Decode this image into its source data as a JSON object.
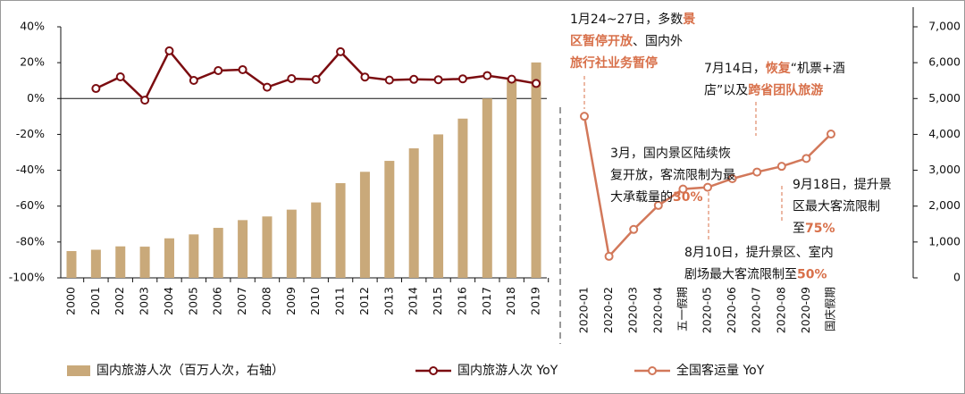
{
  "chart_data": [
    {
      "type": "bar",
      "categories": [
        "2000",
        "2001",
        "2002",
        "2003",
        "2004",
        "2005",
        "2006",
        "2007",
        "2008",
        "2009",
        "2010",
        "2011",
        "2012",
        "2013",
        "2014",
        "2015",
        "2016",
        "2017",
        "2018",
        "2019"
      ],
      "series": [
        {
          "name": "国内旅游人次（百万人次，右轴）",
          "type": "bar",
          "axis": "y2",
          "color": "#c9a97a",
          "values": [
            747,
            784,
            878,
            870,
            1102,
            1212,
            1394,
            1610,
            1712,
            1902,
            2103,
            2641,
            2957,
            3262,
            3611,
            4000,
            4440,
            5001,
            5539,
            6006
          ]
        },
        {
          "name": "国内旅游人次 YoY",
          "type": "line",
          "color": "#7b0c10",
          "values": [
            null,
            5.6,
            12.1,
            -0.9,
            26.6,
            10.1,
            15.6,
            16.1,
            6.3,
            11.1,
            10.6,
            26.1,
            12.0,
            10.3,
            10.7,
            10.5,
            11.0,
            12.8,
            10.8,
            8.4
          ]
        }
      ],
      "ylim": [
        -100,
        40
      ],
      "yticks": [
        {
          "value": -100,
          "label": "-100%"
        },
        {
          "value": -80,
          "label": "-80%"
        },
        {
          "value": -60,
          "label": "-60%"
        },
        {
          "value": -40,
          "label": "-40%"
        },
        {
          "value": -20,
          "label": "-20%"
        },
        {
          "value": 0,
          "label": "0%"
        },
        {
          "value": 20,
          "label": "20%"
        },
        {
          "value": 40,
          "label": "40%"
        }
      ],
      "y2lim": [
        0,
        7000
      ],
      "y2ticks": [
        0,
        {
          "value": 1000,
          "label": "1,000"
        },
        {
          "value": 2000,
          "label": "2,000"
        },
        {
          "value": 3000,
          "label": "3,000"
        },
        {
          "value": 4000,
          "label": "4,000"
        },
        {
          "value": 5000,
          "label": "5,000"
        },
        {
          "value": 6000,
          "label": "6,000"
        },
        {
          "value": 7000,
          "label": "7,000"
        }
      ]
    },
    {
      "type": "line",
      "categories": [
        "2020-01",
        "2020-02",
        "2020-03",
        "2020-04",
        "五一假期",
        "2020-05",
        "2020-06",
        "2020-07",
        "2020-08",
        "2020-09",
        "国庆假期"
      ],
      "series": [
        {
          "name": "全国客运量 YoY",
          "type": "line",
          "color": "#d2785a",
          "values": [
            -9.9,
            -88,
            -73,
            -59.6,
            -50.5,
            -49.5,
            -44.7,
            -41,
            -37.8,
            -33.4,
            -19.8
          ]
        }
      ],
      "highlight_color": "#d8704a",
      "annotations": [
        {
          "lines": [
            [
              {
                "text": "1月24~27日，多数"
              },
              {
                "text": "景",
                "highlight": true
              }
            ],
            [
              {
                "text": "区暂停开放",
                "highlight": true
              },
              {
                "text": "、国内外"
              }
            ],
            [
              {
                "text": "旅行社业务暂停",
                "highlight": true
              }
            ]
          ]
        },
        {
          "lines": [
            [
              {
                "text": "7月14日，"
              },
              {
                "text": "恢复",
                "highlight": true
              },
              {
                "text": "“机票+酒"
              }
            ],
            [
              {
                "text": "店”以及"
              },
              {
                "text": "跨省团队旅游",
                "highlight": true
              }
            ]
          ]
        },
        {
          "lines": [
            [
              {
                "text": "3月，国内景区陆续恢"
              }
            ],
            [
              {
                "text": "复开放，客流限制为最"
              }
            ],
            [
              {
                "text": "大承载量的"
              },
              {
                "text": "30%",
                "highlight": true
              }
            ]
          ]
        },
        {
          "lines": [
            [
              {
                "text": "9月18日，提升景"
              }
            ],
            [
              {
                "text": "区最大客流限制"
              }
            ],
            [
              {
                "text": "至"
              },
              {
                "text": "75%",
                "highlight": true
              }
            ]
          ]
        },
        {
          "lines": [
            [
              {
                "text": "8月10日，提升景区、室内"
              }
            ],
            [
              {
                "text": "剧场最大客流限制至"
              },
              {
                "text": "50%",
                "highlight": true
              }
            ]
          ]
        }
      ]
    }
  ]
}
